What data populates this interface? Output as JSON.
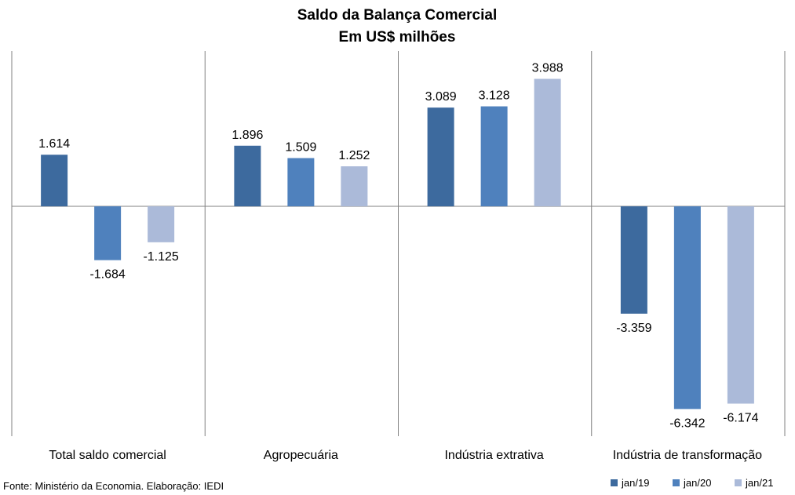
{
  "chart_data": {
    "type": "bar",
    "title": "Saldo da Balança Comercial",
    "subtitle": "Em US$ milhões",
    "categories": [
      "Total saldo comercial",
      "Agropecuária",
      "Indústria extrativa",
      "Indústria de transformação"
    ],
    "series": [
      {
        "name": "jan/19",
        "color": "#3d6a9e",
        "values": [
          1614,
          1896,
          3089,
          -3359
        ],
        "labels": [
          "1.614",
          "1.896",
          "3.089",
          "-3.359"
        ]
      },
      {
        "name": "jan/20",
        "color": "#4f81bd",
        "values": [
          -1684,
          1509,
          3128,
          -6342
        ],
        "labels": [
          "-1.684",
          "1.509",
          "3.128",
          "-6.342"
        ]
      },
      {
        "name": "jan/21",
        "color": "#abbad9",
        "values": [
          -1125,
          1252,
          3988,
          -6174
        ],
        "labels": [
          "-1.125",
          "1.252",
          "3.988",
          "-6.174"
        ]
      }
    ],
    "ylim": [
      -7000,
      5000
    ],
    "xlabel": "",
    "ylabel": "",
    "grid": false,
    "legend": "bottom-right",
    "source": "Fonte: Ministério da Economia. Elaboração: IEDI"
  }
}
